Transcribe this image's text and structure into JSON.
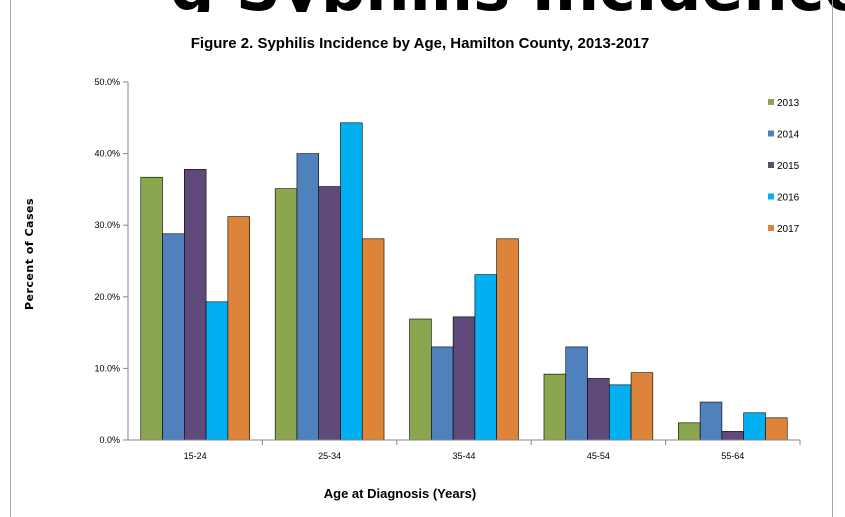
{
  "page": {
    "header_fragment": "g Syphilis Incidence"
  },
  "chart_data": {
    "type": "bar",
    "title": "Figure 2. Syphilis Incidence by Age, Hamilton County, 2013-2017",
    "xlabel": "Age at Diagnosis (Years)",
    "ylabel": "Percent of Cases",
    "categories": [
      "15-24",
      "25-34",
      "35-44",
      "45-54",
      "55-64"
    ],
    "ylim": [
      0,
      50
    ],
    "yticks": [
      "0.0%",
      "10.0%",
      "20.0%",
      "30.0%",
      "40.0%",
      "50.0%"
    ],
    "grid": false,
    "legend_position": "right",
    "series": [
      {
        "name": "2013",
        "color": "#8aa64f",
        "values": [
          36.7,
          35.1,
          16.9,
          9.2,
          2.4
        ]
      },
      {
        "name": "2014",
        "color": "#4f81bd",
        "values": [
          28.8,
          40.0,
          13.0,
          13.0,
          5.3
        ]
      },
      {
        "name": "2015",
        "color": "#604a7b",
        "values": [
          37.8,
          35.4,
          17.2,
          8.6,
          1.2
        ]
      },
      {
        "name": "2016",
        "color": "#00b0f0",
        "values": [
          19.3,
          44.3,
          23.1,
          7.7,
          3.8
        ]
      },
      {
        "name": "2017",
        "color": "#dd843a",
        "values": [
          31.2,
          28.1,
          28.1,
          9.4,
          3.1
        ]
      }
    ]
  }
}
